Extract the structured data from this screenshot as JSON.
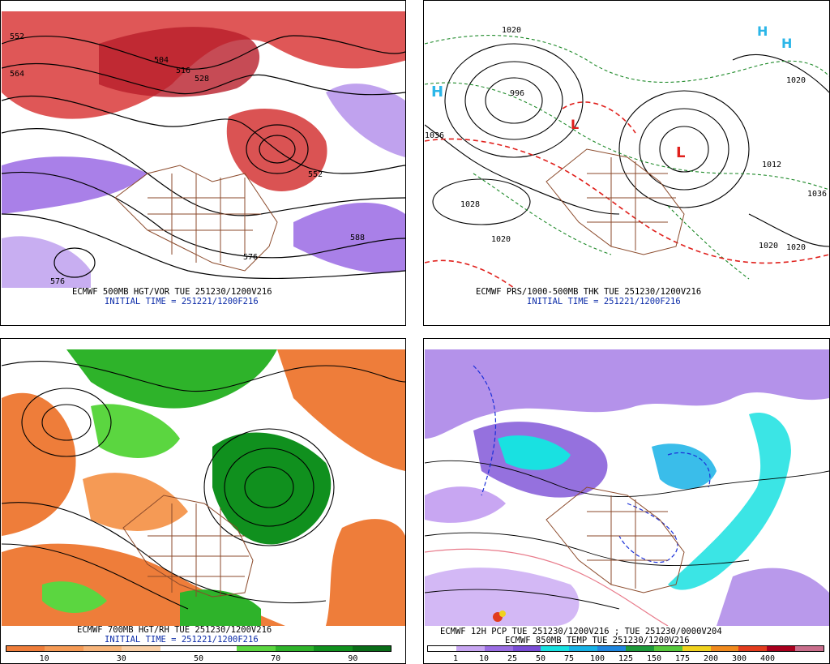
{
  "panels": [
    {
      "caption1": "ECMWF 500MB HGT/VOR TUE 251230/1200V216",
      "caption2": "INITIAL TIME = 251221/1200F216",
      "labels": [
        "552",
        "564",
        "504",
        "516",
        "528",
        "552",
        "576",
        "588",
        "576"
      ]
    },
    {
      "caption1": "ECMWF PRS/1000-500MB THK TUE 251230/1200V216",
      "caption2": "INITIAL TIME = 251221/1200F216",
      "labels": [
        "1020",
        "1036",
        "1028",
        "1020",
        "996",
        "1012",
        "1020",
        "1036",
        "1020",
        "1020"
      ]
    },
    {
      "caption1": "ECMWF 700MB HGT/RH TUE 251230/1200V216",
      "caption2": "INITIAL TIME = 251221/1200F216",
      "colorbar": {
        "ticks": [
          "10",
          "30",
          "50",
          "70",
          "90"
        ],
        "colors": [
          "#ee7d3a",
          "#f59a55",
          "#f7b47a",
          "#f9cfa7",
          "#ffffff",
          "#ffffff",
          "#5bd640",
          "#2eb32a",
          "#10901e",
          "#0a6d18"
        ]
      }
    },
    {
      "caption1": "ECMWF 12H PCP TUE 251230/1200V216 ; TUE 251230/0000V204",
      "caption2": "ECMWF 850MB TEMP TUE 251230/1200V216",
      "colorbar": {
        "ticks": [
          "1",
          "10",
          "25",
          "50",
          "75",
          "100",
          "125",
          "150",
          "175",
          "200",
          "300",
          "400"
        ],
        "colors": [
          "#ffffff",
          "#c8a6f2",
          "#9b6ee3",
          "#7a4dd6",
          "#19e1e1",
          "#18b2e6",
          "#1f86de",
          "#1e9a3a",
          "#57c83c",
          "#f0d21e",
          "#f08a1e",
          "#e23c1e",
          "#a8001e",
          "#c96e8c"
        ]
      }
    }
  ]
}
